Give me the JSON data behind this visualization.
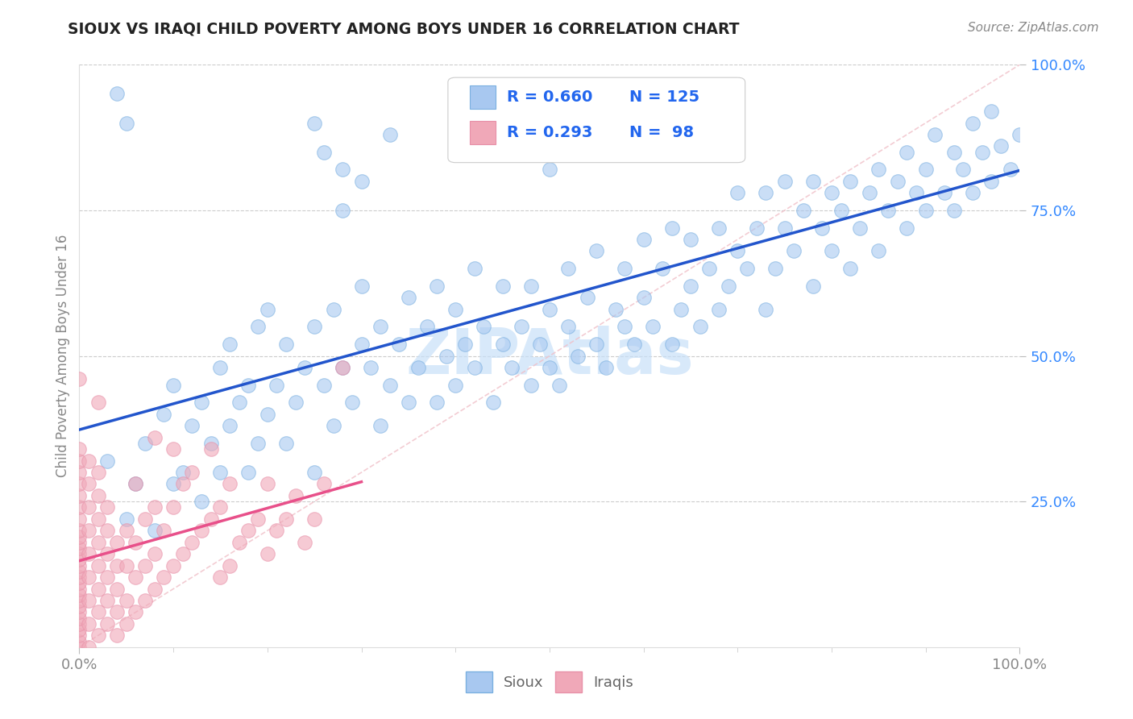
{
  "title": "SIOUX VS IRAQI CHILD POVERTY AMONG BOYS UNDER 16 CORRELATION CHART",
  "source_text": "Source: ZipAtlas.com",
  "ylabel": "Child Poverty Among Boys Under 16",
  "xlim": [
    0.0,
    1.0
  ],
  "ylim": [
    0.0,
    1.0
  ],
  "background_color": "#ffffff",
  "grid_color": "#cccccc",
  "sioux_color": "#a8c8f0",
  "sioux_edge_color": "#7ab0e0",
  "iraqi_color": "#f0a8b8",
  "iraqi_edge_color": "#e890a8",
  "sioux_line_color": "#2255cc",
  "iraqi_line_color": "#e8508a",
  "diag_line_color": "#ffcccc",
  "sioux_R": 0.66,
  "sioux_N": 125,
  "iraqi_R": 0.293,
  "iraqi_N": 98,
  "watermark": "ZIPAtlas",
  "watermark_color": "#c8e0f8",
  "legend_text_color": "#2266ee",
  "ytick_color": "#3388ff",
  "xtick_color": "#888888",
  "ylabel_color": "#888888",
  "sioux_scatter": [
    [
      0.03,
      0.32
    ],
    [
      0.05,
      0.22
    ],
    [
      0.06,
      0.28
    ],
    [
      0.07,
      0.35
    ],
    [
      0.08,
      0.2
    ],
    [
      0.09,
      0.4
    ],
    [
      0.1,
      0.28
    ],
    [
      0.1,
      0.45
    ],
    [
      0.11,
      0.3
    ],
    [
      0.12,
      0.38
    ],
    [
      0.13,
      0.25
    ],
    [
      0.13,
      0.42
    ],
    [
      0.14,
      0.35
    ],
    [
      0.15,
      0.3
    ],
    [
      0.15,
      0.48
    ],
    [
      0.16,
      0.38
    ],
    [
      0.16,
      0.52
    ],
    [
      0.17,
      0.42
    ],
    [
      0.18,
      0.3
    ],
    [
      0.18,
      0.45
    ],
    [
      0.19,
      0.35
    ],
    [
      0.19,
      0.55
    ],
    [
      0.2,
      0.4
    ],
    [
      0.2,
      0.58
    ],
    [
      0.21,
      0.45
    ],
    [
      0.22,
      0.35
    ],
    [
      0.22,
      0.52
    ],
    [
      0.23,
      0.42
    ],
    [
      0.24,
      0.48
    ],
    [
      0.25,
      0.3
    ],
    [
      0.25,
      0.55
    ],
    [
      0.26,
      0.45
    ],
    [
      0.27,
      0.38
    ],
    [
      0.27,
      0.58
    ],
    [
      0.28,
      0.48
    ],
    [
      0.29,
      0.42
    ],
    [
      0.3,
      0.52
    ],
    [
      0.3,
      0.62
    ],
    [
      0.31,
      0.48
    ],
    [
      0.32,
      0.38
    ],
    [
      0.32,
      0.55
    ],
    [
      0.33,
      0.45
    ],
    [
      0.34,
      0.52
    ],
    [
      0.35,
      0.42
    ],
    [
      0.35,
      0.6
    ],
    [
      0.36,
      0.48
    ],
    [
      0.37,
      0.55
    ],
    [
      0.38,
      0.42
    ],
    [
      0.38,
      0.62
    ],
    [
      0.39,
      0.5
    ],
    [
      0.4,
      0.45
    ],
    [
      0.4,
      0.58
    ],
    [
      0.41,
      0.52
    ],
    [
      0.42,
      0.48
    ],
    [
      0.42,
      0.65
    ],
    [
      0.43,
      0.55
    ],
    [
      0.44,
      0.42
    ],
    [
      0.45,
      0.52
    ],
    [
      0.45,
      0.62
    ],
    [
      0.46,
      0.48
    ],
    [
      0.47,
      0.55
    ],
    [
      0.48,
      0.45
    ],
    [
      0.48,
      0.62
    ],
    [
      0.49,
      0.52
    ],
    [
      0.5,
      0.48
    ],
    [
      0.5,
      0.58
    ],
    [
      0.51,
      0.45
    ],
    [
      0.52,
      0.55
    ],
    [
      0.52,
      0.65
    ],
    [
      0.53,
      0.5
    ],
    [
      0.54,
      0.6
    ],
    [
      0.55,
      0.52
    ],
    [
      0.55,
      0.68
    ],
    [
      0.56,
      0.48
    ],
    [
      0.57,
      0.58
    ],
    [
      0.58,
      0.55
    ],
    [
      0.58,
      0.65
    ],
    [
      0.59,
      0.52
    ],
    [
      0.6,
      0.6
    ],
    [
      0.6,
      0.7
    ],
    [
      0.61,
      0.55
    ],
    [
      0.62,
      0.65
    ],
    [
      0.63,
      0.52
    ],
    [
      0.63,
      0.72
    ],
    [
      0.64,
      0.58
    ],
    [
      0.65,
      0.62
    ],
    [
      0.65,
      0.7
    ],
    [
      0.66,
      0.55
    ],
    [
      0.67,
      0.65
    ],
    [
      0.68,
      0.58
    ],
    [
      0.68,
      0.72
    ],
    [
      0.69,
      0.62
    ],
    [
      0.7,
      0.68
    ],
    [
      0.7,
      0.78
    ],
    [
      0.71,
      0.65
    ],
    [
      0.72,
      0.72
    ],
    [
      0.73,
      0.58
    ],
    [
      0.73,
      0.78
    ],
    [
      0.74,
      0.65
    ],
    [
      0.75,
      0.72
    ],
    [
      0.75,
      0.8
    ],
    [
      0.76,
      0.68
    ],
    [
      0.77,
      0.75
    ],
    [
      0.78,
      0.62
    ],
    [
      0.78,
      0.8
    ],
    [
      0.79,
      0.72
    ],
    [
      0.8,
      0.68
    ],
    [
      0.8,
      0.78
    ],
    [
      0.81,
      0.75
    ],
    [
      0.82,
      0.65
    ],
    [
      0.82,
      0.8
    ],
    [
      0.83,
      0.72
    ],
    [
      0.84,
      0.78
    ],
    [
      0.85,
      0.68
    ],
    [
      0.85,
      0.82
    ],
    [
      0.86,
      0.75
    ],
    [
      0.87,
      0.8
    ],
    [
      0.88,
      0.72
    ],
    [
      0.88,
      0.85
    ],
    [
      0.89,
      0.78
    ],
    [
      0.9,
      0.75
    ],
    [
      0.9,
      0.82
    ],
    [
      0.91,
      0.88
    ],
    [
      0.92,
      0.78
    ],
    [
      0.93,
      0.85
    ],
    [
      0.93,
      0.75
    ],
    [
      0.94,
      0.82
    ],
    [
      0.95,
      0.9
    ],
    [
      0.95,
      0.78
    ],
    [
      0.96,
      0.85
    ],
    [
      0.97,
      0.8
    ],
    [
      0.97,
      0.92
    ],
    [
      0.98,
      0.86
    ],
    [
      0.99,
      0.82
    ],
    [
      1.0,
      0.88
    ],
    [
      0.25,
      0.9
    ],
    [
      0.26,
      0.85
    ],
    [
      0.28,
      0.75
    ],
    [
      0.28,
      0.82
    ],
    [
      0.3,
      0.8
    ],
    [
      0.5,
      0.82
    ],
    [
      0.33,
      0.88
    ],
    [
      0.04,
      0.95
    ],
    [
      0.05,
      0.9
    ]
  ],
  "iraqi_scatter": [
    [
      0.0,
      0.0
    ],
    [
      0.0,
      0.01
    ],
    [
      0.0,
      0.02
    ],
    [
      0.0,
      0.03
    ],
    [
      0.0,
      0.04
    ],
    [
      0.0,
      0.05
    ],
    [
      0.0,
      0.06
    ],
    [
      0.0,
      0.07
    ],
    [
      0.0,
      0.08
    ],
    [
      0.0,
      0.09
    ],
    [
      0.0,
      0.1
    ],
    [
      0.0,
      0.11
    ],
    [
      0.0,
      0.12
    ],
    [
      0.0,
      0.13
    ],
    [
      0.0,
      0.14
    ],
    [
      0.0,
      0.15
    ],
    [
      0.0,
      0.16
    ],
    [
      0.0,
      0.17
    ],
    [
      0.0,
      0.18
    ],
    [
      0.0,
      0.19
    ],
    [
      0.0,
      0.2
    ],
    [
      0.0,
      0.22
    ],
    [
      0.0,
      0.24
    ],
    [
      0.0,
      0.26
    ],
    [
      0.0,
      0.28
    ],
    [
      0.0,
      0.3
    ],
    [
      0.0,
      0.32
    ],
    [
      0.0,
      0.34
    ],
    [
      0.01,
      0.0
    ],
    [
      0.01,
      0.04
    ],
    [
      0.01,
      0.08
    ],
    [
      0.01,
      0.12
    ],
    [
      0.01,
      0.16
    ],
    [
      0.01,
      0.2
    ],
    [
      0.01,
      0.24
    ],
    [
      0.01,
      0.28
    ],
    [
      0.01,
      0.32
    ],
    [
      0.02,
      0.02
    ],
    [
      0.02,
      0.06
    ],
    [
      0.02,
      0.1
    ],
    [
      0.02,
      0.14
    ],
    [
      0.02,
      0.18
    ],
    [
      0.02,
      0.22
    ],
    [
      0.02,
      0.26
    ],
    [
      0.02,
      0.3
    ],
    [
      0.02,
      0.42
    ],
    [
      0.03,
      0.04
    ],
    [
      0.03,
      0.08
    ],
    [
      0.03,
      0.12
    ],
    [
      0.03,
      0.16
    ],
    [
      0.03,
      0.2
    ],
    [
      0.03,
      0.24
    ],
    [
      0.04,
      0.02
    ],
    [
      0.04,
      0.06
    ],
    [
      0.04,
      0.1
    ],
    [
      0.04,
      0.14
    ],
    [
      0.04,
      0.18
    ],
    [
      0.05,
      0.04
    ],
    [
      0.05,
      0.08
    ],
    [
      0.05,
      0.14
    ],
    [
      0.05,
      0.2
    ],
    [
      0.06,
      0.06
    ],
    [
      0.06,
      0.12
    ],
    [
      0.06,
      0.18
    ],
    [
      0.06,
      0.28
    ],
    [
      0.07,
      0.08
    ],
    [
      0.07,
      0.14
    ],
    [
      0.07,
      0.22
    ],
    [
      0.08,
      0.1
    ],
    [
      0.08,
      0.16
    ],
    [
      0.08,
      0.24
    ],
    [
      0.08,
      0.36
    ],
    [
      0.09,
      0.12
    ],
    [
      0.09,
      0.2
    ],
    [
      0.1,
      0.14
    ],
    [
      0.1,
      0.24
    ],
    [
      0.1,
      0.34
    ],
    [
      0.11,
      0.16
    ],
    [
      0.11,
      0.28
    ],
    [
      0.12,
      0.18
    ],
    [
      0.12,
      0.3
    ],
    [
      0.13,
      0.2
    ],
    [
      0.14,
      0.22
    ],
    [
      0.14,
      0.34
    ],
    [
      0.15,
      0.12
    ],
    [
      0.15,
      0.24
    ],
    [
      0.16,
      0.14
    ],
    [
      0.16,
      0.28
    ],
    [
      0.17,
      0.18
    ],
    [
      0.18,
      0.2
    ],
    [
      0.19,
      0.22
    ],
    [
      0.2,
      0.16
    ],
    [
      0.2,
      0.28
    ],
    [
      0.21,
      0.2
    ],
    [
      0.22,
      0.22
    ],
    [
      0.23,
      0.26
    ],
    [
      0.24,
      0.18
    ],
    [
      0.25,
      0.22
    ],
    [
      0.26,
      0.28
    ],
    [
      0.28,
      0.48
    ],
    [
      0.0,
      0.46
    ]
  ]
}
